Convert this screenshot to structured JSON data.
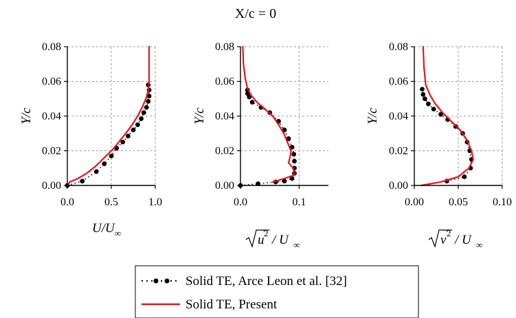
{
  "figure_title": "X/c = 0",
  "chart_data": [
    {
      "type": "line",
      "id": "u-mean",
      "xlabel": "U/U∞",
      "xlabel_main": "U/U",
      "xlabel_sub": "∞",
      "ylabel": "Y/c",
      "xlim": [
        0.0,
        1.0
      ],
      "ylim": [
        0.0,
        0.08
      ],
      "xticks": [
        0.0,
        0.5,
        1.0
      ],
      "xtick_labels": [
        "0.0",
        "0.5",
        "1.0"
      ],
      "yticks": [
        0.0,
        0.02,
        0.04,
        0.06,
        0.08
      ],
      "ytick_labels": [
        "0.00",
        "0.02",
        "0.04",
        "0.06",
        "0.08"
      ],
      "grid": "dashed",
      "series": [
        {
          "name": "Solid TE, Arce Leon et al. [32]",
          "style": "dotted-markers",
          "color": "#000000",
          "x": [
            0.0,
            0.17,
            0.33,
            0.42,
            0.5,
            0.56,
            0.63,
            0.69,
            0.75,
            0.8,
            0.84,
            0.87,
            0.9,
            0.92,
            0.93,
            0.93,
            0.92
          ],
          "y": [
            0.0,
            0.0025,
            0.008,
            0.0125,
            0.017,
            0.0215,
            0.025,
            0.0285,
            0.032,
            0.035,
            0.0385,
            0.042,
            0.045,
            0.0485,
            0.0515,
            0.055,
            0.058
          ]
        },
        {
          "name": "Solid TE, Present",
          "style": "solid",
          "color": "#e8121a",
          "x": [
            0.0,
            0.03,
            0.12,
            0.22,
            0.32,
            0.42,
            0.52,
            0.6,
            0.68,
            0.75,
            0.81,
            0.86,
            0.9,
            0.92,
            0.93,
            0.93,
            0.93
          ],
          "y": [
            0.0,
            0.002,
            0.004,
            0.007,
            0.011,
            0.016,
            0.021,
            0.026,
            0.031,
            0.036,
            0.041,
            0.046,
            0.051,
            0.055,
            0.06,
            0.07,
            0.08
          ]
        }
      ]
    },
    {
      "type": "line",
      "id": "u-rms",
      "xlabel": "√(u'²) / U∞",
      "xlabel_var": "u",
      "xlabel_rest": "/ U",
      "xlabel_sub": "∞",
      "ylabel": "Y/c",
      "xlim": [
        0.0,
        0.15
      ],
      "ylim": [
        0.0,
        0.08
      ],
      "xticks": [
        0.0,
        0.1
      ],
      "xtick_labels": [
        "0.0",
        "0.1"
      ],
      "yticks": [
        0.0,
        0.02,
        0.04,
        0.06,
        0.08
      ],
      "ytick_labels": [
        "0.00",
        "0.02",
        "0.04",
        "0.06",
        "0.08"
      ],
      "grid": "dashed",
      "series": [
        {
          "name": "Solid TE, Arce Leon et al. [32]",
          "style": "dotted-markers",
          "color": "#000000",
          "x": [
            0.0,
            0.03,
            0.06,
            0.075,
            0.088,
            0.092,
            0.092,
            0.092,
            0.091,
            0.088,
            0.082,
            0.075,
            0.065,
            0.05,
            0.035,
            0.02,
            0.015,
            0.012,
            0.012
          ],
          "y": [
            0.0,
            0.001,
            0.002,
            0.0025,
            0.004,
            0.007,
            0.01,
            0.014,
            0.018,
            0.022,
            0.027,
            0.032,
            0.037,
            0.042,
            0.045,
            0.048,
            0.051,
            0.053,
            0.055
          ]
        },
        {
          "name": "Solid TE, Present",
          "style": "solid",
          "color": "#e8121a",
          "x": [
            0.055,
            0.075,
            0.092,
            0.09,
            0.082,
            0.085,
            0.086,
            0.08,
            0.074,
            0.065,
            0.055,
            0.042,
            0.028,
            0.018,
            0.012,
            0.008,
            0.005,
            0.004
          ],
          "y": [
            0.002,
            0.004,
            0.006,
            0.01,
            0.013,
            0.017,
            0.02,
            0.025,
            0.03,
            0.035,
            0.04,
            0.044,
            0.048,
            0.052,
            0.056,
            0.062,
            0.07,
            0.08
          ]
        }
      ]
    },
    {
      "type": "line",
      "id": "v-rms",
      "xlabel": "√(v'²) / U∞",
      "xlabel_var": "v",
      "xlabel_rest": "/ U",
      "xlabel_sub": "∞",
      "ylabel": "Y/c",
      "xlim": [
        0.0,
        0.1
      ],
      "ylim": [
        0.0,
        0.08
      ],
      "xticks": [
        0.0,
        0.05,
        0.1
      ],
      "xtick_labels": [
        "0.00",
        "0.05",
        "0.10"
      ],
      "yticks": [
        0.0,
        0.02,
        0.04,
        0.06,
        0.08
      ],
      "ytick_labels": [
        "0.00",
        "0.02",
        "0.04",
        "0.06",
        "0.08"
      ],
      "grid": "dashed",
      "series": [
        {
          "name": "Solid TE, Arce Leon et al. [32]",
          "style": "dotted-markers",
          "color": "#000000",
          "x": [
            0.037,
            0.057,
            0.064,
            0.065,
            0.063,
            0.06,
            0.055,
            0.047,
            0.038,
            0.03,
            0.022,
            0.016,
            0.012,
            0.01,
            0.009
          ],
          "y": [
            0.0025,
            0.005,
            0.01,
            0.015,
            0.02,
            0.025,
            0.03,
            0.034,
            0.038,
            0.041,
            0.044,
            0.047,
            0.05,
            0.0525,
            0.0555
          ]
        },
        {
          "name": "Solid TE, Present",
          "style": "solid",
          "color": "#e8121a",
          "x": [
            0.008,
            0.03,
            0.05,
            0.062,
            0.067,
            0.065,
            0.06,
            0.052,
            0.042,
            0.032,
            0.024,
            0.018,
            0.013,
            0.011,
            0.01
          ],
          "y": [
            0.0,
            0.002,
            0.005,
            0.01,
            0.015,
            0.02,
            0.026,
            0.032,
            0.037,
            0.042,
            0.047,
            0.052,
            0.058,
            0.068,
            0.08
          ]
        }
      ]
    }
  ],
  "legend": {
    "position": "bottom-center",
    "entries": [
      "Solid TE, Arce Leon et al. [32]",
      "Solid TE, Present"
    ]
  },
  "colors": {
    "present": "#e8121a",
    "reference": "#000000",
    "grid": "#9a9a9a"
  }
}
